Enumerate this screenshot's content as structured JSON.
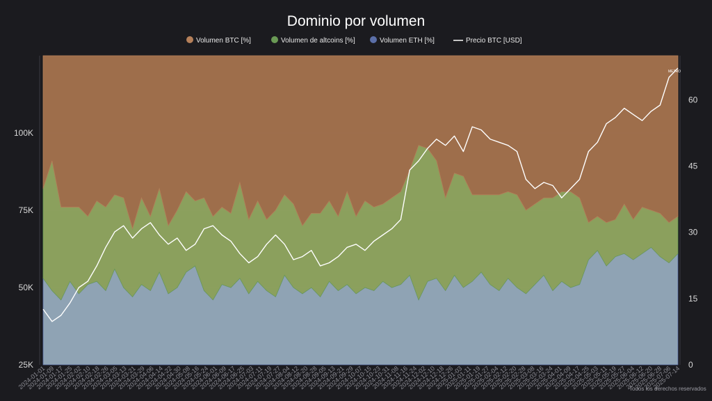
{
  "chart_data": {
    "type": "area",
    "title": "Dominio por volumen",
    "legend": [
      {
        "label": "Volumen BTC [%]",
        "color": "#b5805a",
        "marker": "dot"
      },
      {
        "label": "Volumen de altcoins [%]",
        "color": "#6a9a55",
        "marker": "dot"
      },
      {
        "label": "Volumen ETH [%]",
        "color": "#5b6fa8",
        "marker": "dot"
      },
      {
        "label": "Precio BTC [USD]",
        "color": "#ffffff",
        "marker": "line"
      }
    ],
    "legend_position": "top-center",
    "y_left": {
      "ticks": [
        "25K",
        "50K",
        "75K",
        "100K"
      ],
      "range": [
        25000,
        125000
      ]
    },
    "y_right": {
      "ticks": [
        "0",
        "15",
        "30",
        "45",
        "60"
      ],
      "range": [
        0,
        70
      ]
    },
    "x_ticks": [
      "2024-01-01",
      "2024-01-09",
      "2024-01-17",
      "2024-01-25",
      "2024-02-02",
      "2024-02-10",
      "2024-02-18",
      "2024-02-26",
      "2024-03-05",
      "2024-03-13",
      "2024-03-21",
      "2024-03-29",
      "2024-04-06",
      "2024-04-14",
      "2024-04-22",
      "2024-04-30",
      "2024-05-08",
      "2024-05-16",
      "2024-05-24",
      "2024-06-01",
      "2024-06-09",
      "2024-06-17",
      "2024-06-25",
      "2024-07-03",
      "2024-07-11",
      "2024-07-19",
      "2024-07-27",
      "2024-08-04",
      "2024-08-12",
      "2024-08-20",
      "2024-08-28",
      "2024-09-05",
      "2024-09-13",
      "2024-09-21",
      "2024-09-29",
      "2024-10-07",
      "2024-10-15",
      "2024-10-23",
      "2024-10-31",
      "2024-11-08",
      "2024-11-16",
      "2024-11-24",
      "2024-12-02",
      "2024-12-10",
      "2024-12-18",
      "2024-12-26",
      "2025-01-03",
      "2025-01-11",
      "2025-01-19",
      "2025-01-27",
      "2025-02-04",
      "2025-02-12",
      "2025-02-20",
      "2025-02-28",
      "2025-03-08",
      "2025-03-16",
      "2025-03-24",
      "2025-04-01",
      "2025-04-09",
      "2025-04-17",
      "2025-04-25",
      "2025-05-03",
      "2025-05-11",
      "2025-05-19",
      "2025-05-27",
      "2025-06-04",
      "2025-06-12",
      "2025-06-20",
      "2025-06-28",
      "2025-07-06",
      "2025-07-14"
    ],
    "annotation": "METRO",
    "copyright": "Todos los derechos reservados",
    "btc_price": {
      "name": "Precio BTC [USD]",
      "axis": "left",
      "values": [
        43000,
        39000,
        41000,
        45000,
        50000,
        52000,
        57000,
        63000,
        68000,
        70000,
        66000,
        69000,
        71000,
        67000,
        64000,
        66000,
        62000,
        64000,
        69000,
        70000,
        67000,
        65000,
        61000,
        58000,
        60000,
        64000,
        67000,
        64000,
        59000,
        60000,
        62000,
        57000,
        58000,
        60000,
        63000,
        64000,
        62000,
        65000,
        67000,
        69000,
        72000,
        88000,
        91000,
        95000,
        98000,
        96000,
        99000,
        94000,
        102000,
        101000,
        98000,
        97000,
        96000,
        94000,
        85000,
        82000,
        84000,
        83000,
        79000,
        82000,
        85000,
        94000,
        97000,
        103000,
        105000,
        108000,
        106000,
        104000,
        107000,
        109000,
        118000,
        121000
      ]
    },
    "series": [
      {
        "name": "Volumen ETH [%]",
        "color": "#5b6fa8",
        "values": [
          28,
          24,
          21,
          27,
          23,
          26,
          27,
          24,
          31,
          25,
          22,
          26,
          24,
          30,
          23,
          25,
          30,
          32,
          24,
          21,
          26,
          25,
          28,
          23,
          27,
          24,
          22,
          29,
          25,
          23,
          25,
          22,
          27,
          24,
          26,
          23,
          25,
          24,
          27,
          25,
          26,
          29,
          21,
          27,
          28,
          24,
          29,
          25,
          27,
          30,
          26,
          24,
          28,
          25,
          23,
          26,
          29,
          24,
          27,
          25,
          26,
          34,
          37,
          32,
          35,
          36,
          34,
          36,
          38,
          35,
          33,
          36
        ]
      },
      {
        "name": "Volumen de altcoins [%]",
        "color": "#6a9a55",
        "values": [
          29,
          42,
          30,
          24,
          28,
          22,
          26,
          27,
          24,
          29,
          22,
          28,
          24,
          27,
          22,
          25,
          26,
          21,
          30,
          27,
          25,
          24,
          31,
          24,
          26,
          23,
          28,
          26,
          27,
          22,
          24,
          27,
          26,
          24,
          30,
          25,
          28,
          27,
          25,
          29,
          30,
          34,
          50,
          43,
          38,
          30,
          33,
          36,
          28,
          25,
          29,
          31,
          28,
          30,
          27,
          26,
          25,
          30,
          29,
          31,
          28,
          12,
          11,
          14,
          12,
          16,
          13,
          15,
          12,
          14,
          13,
          12
        ]
      },
      {
        "name": "Volumen BTC [%]",
        "color": "#b5805a",
        "values": [
          43,
          34,
          49,
          49,
          49,
          52,
          47,
          49,
          45,
          46,
          56,
          46,
          52,
          43,
          55,
          50,
          44,
          47,
          46,
          52,
          49,
          51,
          41,
          53,
          47,
          53,
          50,
          45,
          48,
          55,
          51,
          51,
          47,
          52,
          44,
          52,
          47,
          49,
          48,
          46,
          44,
          37,
          29,
          30,
          34,
          46,
          38,
          39,
          45,
          45,
          45,
          45,
          44,
          45,
          50,
          48,
          46,
          46,
          44,
          44,
          46,
          54,
          52,
          54,
          53,
          48,
          53,
          49,
          50,
          51,
          54,
          52
        ]
      }
    ]
  }
}
